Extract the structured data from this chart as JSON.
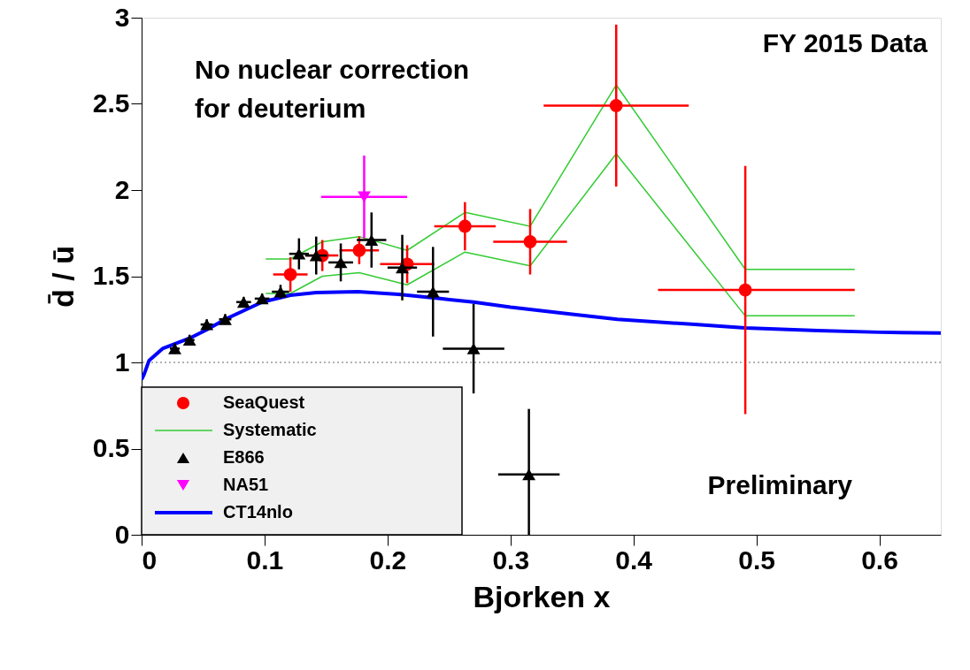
{
  "chart_data": {
    "type": "scatter",
    "xlabel": "Bjorken x",
    "ylabel": "d̄ / ū",
    "annotations": [
      "FY 2015 Data",
      "No nuclear correction\nfor deuterium",
      "Preliminary"
    ],
    "xlim": [
      0,
      0.65
    ],
    "ylim": [
      0,
      3
    ],
    "xticks": [
      0,
      0.1,
      0.2,
      0.3,
      0.4,
      0.5,
      0.6
    ],
    "yticks": [
      0,
      0.5,
      1,
      1.5,
      2,
      2.5,
      3
    ],
    "legend": "bottom left",
    "ref_lines": [
      {
        "axis": "y",
        "value": 1,
        "color": "#999999",
        "line_style": "dotted"
      }
    ],
    "series": [
      {
        "name": "SeaQuest",
        "marker": "circle",
        "color": "#ff0000",
        "x": [
          0.121,
          0.147,
          0.177,
          0.216,
          0.263,
          0.316,
          0.386,
          0.491
        ],
        "values": [
          1.51,
          1.62,
          1.65,
          1.57,
          1.79,
          1.7,
          2.49,
          1.42
        ],
        "errors": [
          0.1,
          0.09,
          0.08,
          0.11,
          0.14,
          0.19,
          0.47,
          0.72
        ],
        "xerrors": [
          0.014,
          0.013,
          0.016,
          0.022,
          0.025,
          0.03,
          0.059,
          [
            0.42,
            0.58
          ]
        ]
      },
      {
        "name": "Systematic",
        "type": "line",
        "color": "#33cc33",
        "x": [
          0.101,
          0.121,
          0.147,
          0.177,
          0.216,
          0.263,
          0.316,
          0.386,
          0.491,
          0.58
        ],
        "values": [
          1.6,
          1.6,
          1.7,
          1.73,
          1.65,
          1.87,
          1.79,
          2.61,
          1.54,
          1.54
        ]
      },
      {
        "type": "line",
        "color": "#33cc33",
        "x": [
          0.101,
          0.121,
          0.147,
          0.177,
          0.216,
          0.263,
          0.316,
          0.386,
          0.491,
          0.58
        ],
        "values": [
          1.4,
          1.4,
          1.5,
          1.52,
          1.45,
          1.64,
          1.56,
          2.21,
          1.27,
          1.27
        ]
      },
      {
        "name": "E866",
        "marker": "triangle",
        "color": "#000000",
        "x": [
          0.027,
          0.039,
          0.053,
          0.068,
          0.083,
          0.098,
          0.113,
          0.128,
          0.142,
          0.162,
          0.187,
          0.212,
          0.237,
          0.27,
          0.315
        ],
        "values": [
          1.08,
          1.13,
          1.22,
          1.25,
          1.35,
          1.37,
          1.41,
          1.63,
          1.62,
          1.58,
          1.71,
          1.55,
          1.41,
          1.08,
          0.35
        ],
        "errors": [
          0.03,
          0.03,
          0.03,
          0.03,
          0.03,
          0.03,
          0.04,
          0.09,
          0.11,
          0.11,
          0.16,
          0.19,
          0.26,
          0.26,
          0.38
        ],
        "xerrors": [
          0.004,
          0.004,
          0.005,
          0.005,
          0.006,
          0.006,
          0.007,
          0.008,
          0.009,
          0.01,
          0.012,
          0.012,
          0.013,
          0.025,
          0.025
        ]
      },
      {
        "name": "NA51",
        "marker": "triangle-down",
        "color": "#ff00ff",
        "x": [
          0.181
        ],
        "values": [
          1.96
        ],
        "errors": [
          0.24
        ],
        "xerrors": [
          0.035
        ]
      },
      {
        "name": "CT14nlo",
        "type": "line",
        "color": "#0000ff",
        "x": [
          0.0,
          0.002,
          0.006,
          0.017,
          0.039,
          0.053,
          0.068,
          0.083,
          0.098,
          0.121,
          0.142,
          0.176,
          0.209,
          0.243,
          0.27,
          0.3,
          0.35,
          0.387,
          0.45,
          0.491,
          0.55,
          0.6,
          0.65
        ],
        "values": [
          0.9,
          0.93,
          1.01,
          1.08,
          1.14,
          1.19,
          1.25,
          1.3,
          1.35,
          1.39,
          1.405,
          1.41,
          1.395,
          1.37,
          1.35,
          1.32,
          1.28,
          1.25,
          1.22,
          1.2,
          1.185,
          1.175,
          1.17
        ]
      }
    ]
  }
}
